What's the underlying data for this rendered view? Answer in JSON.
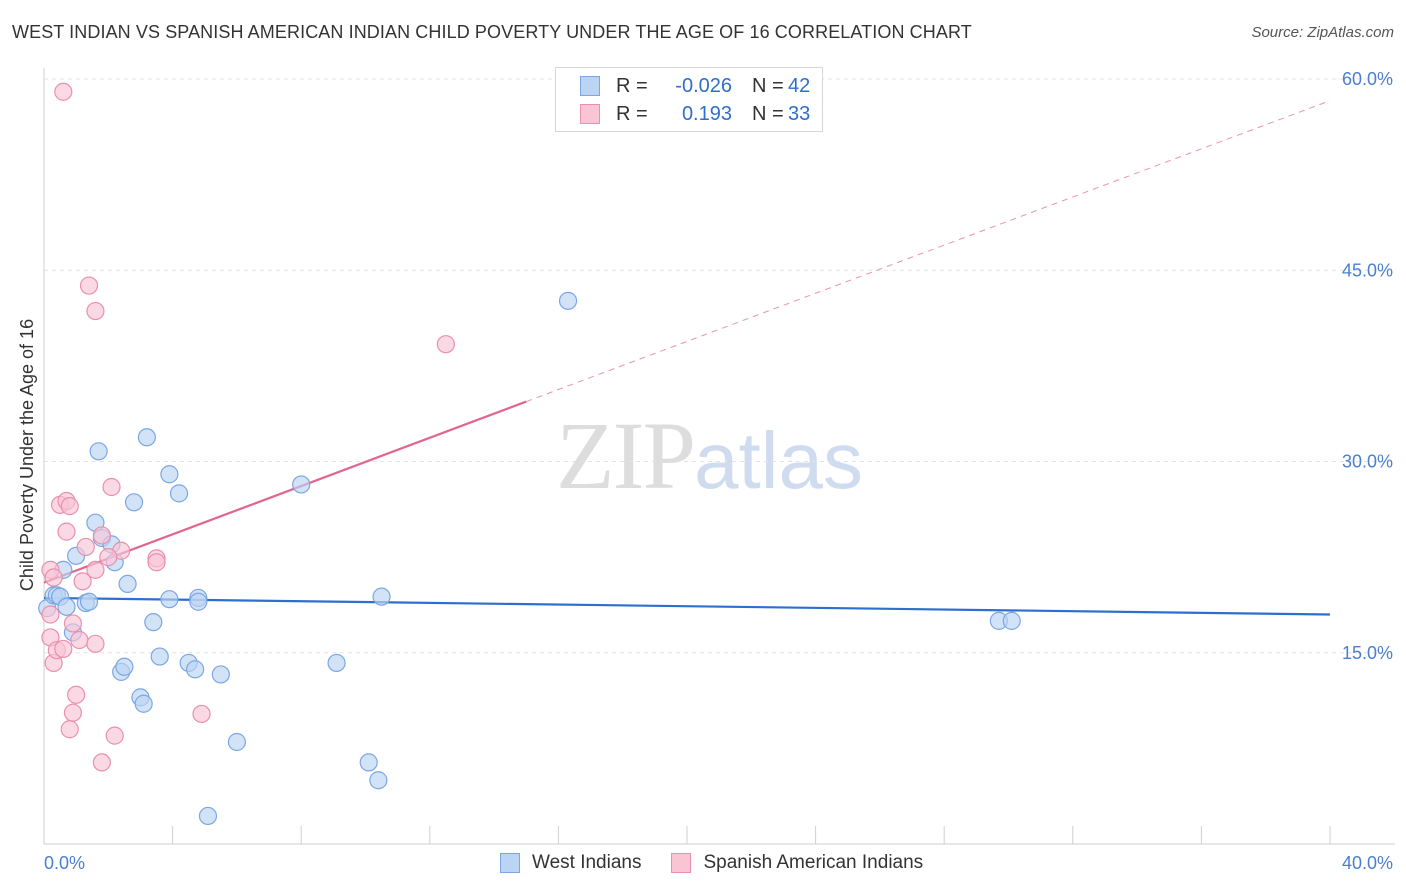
{
  "header": {
    "title": "WEST INDIAN VS SPANISH AMERICAN INDIAN CHILD POVERTY UNDER THE AGE OF 16 CORRELATION CHART",
    "source": "Source: ZipAtlas.com"
  },
  "watermark": {
    "zip": "ZIP",
    "atlas": "atlas"
  },
  "legend": {
    "rows": [
      {
        "r_label": "R =",
        "r_value": "-0.026",
        "n_label": "N =",
        "n_value": "42"
      },
      {
        "r_label": "R =",
        "r_value": "0.193",
        "n_label": "N =",
        "n_value": "33"
      }
    ]
  },
  "colors": {
    "west_fill": "#bcd4f3",
    "west_stroke": "#7aa7e3",
    "west_line": "#2c6fcf",
    "spanish_fill": "#f9c5d5",
    "spanish_stroke": "#ea8fad",
    "spanish_line": "#e0658f"
  },
  "chart_data": {
    "type": "scatter",
    "title": "WEST INDIAN VS SPANISH AMERICAN INDIAN CHILD POVERTY UNDER THE AGE OF 16 CORRELATION CHART",
    "xlabel": "",
    "ylabel": "Child Poverty Under the Age of 16",
    "xlim": [
      0,
      40
    ],
    "ylim": [
      0,
      60
    ],
    "x_tick_labels": [
      "0.0%",
      "40.0%"
    ],
    "y_ticks": [
      15,
      30,
      45,
      60
    ],
    "y_tick_labels": [
      "15.0%",
      "30.0%",
      "45.0%",
      "60.0%"
    ],
    "grid": true,
    "series": [
      {
        "name": "West Indians",
        "r": -0.026,
        "n": 42,
        "trend": {
          "x": [
            0,
            40
          ],
          "y": [
            19.3,
            18.0
          ]
        },
        "points": [
          [
            0.1,
            18.5
          ],
          [
            0.3,
            19.5
          ],
          [
            0.4,
            19.5
          ],
          [
            0.5,
            19.4
          ],
          [
            0.7,
            18.6
          ],
          [
            0.6,
            21.5
          ],
          [
            0.9,
            16.6
          ],
          [
            1.0,
            22.6
          ],
          [
            1.3,
            18.9
          ],
          [
            1.4,
            19.0
          ],
          [
            1.6,
            25.2
          ],
          [
            1.7,
            30.8
          ],
          [
            1.8,
            24.0
          ],
          [
            2.1,
            23.5
          ],
          [
            2.2,
            22.1
          ],
          [
            2.4,
            13.5
          ],
          [
            2.5,
            13.9
          ],
          [
            2.6,
            20.4
          ],
          [
            2.8,
            26.8
          ],
          [
            3.0,
            11.5
          ],
          [
            3.1,
            11.0
          ],
          [
            3.2,
            31.9
          ],
          [
            3.4,
            17.4
          ],
          [
            3.6,
            14.7
          ],
          [
            3.9,
            29.0
          ],
          [
            3.9,
            19.2
          ],
          [
            4.2,
            27.5
          ],
          [
            4.5,
            14.2
          ],
          [
            4.7,
            13.7
          ],
          [
            4.8,
            19.3
          ],
          [
            4.8,
            19.0
          ],
          [
            5.1,
            2.2
          ],
          [
            5.5,
            13.3
          ],
          [
            6.0,
            8.0
          ],
          [
            8.0,
            28.2
          ],
          [
            9.1,
            14.2
          ],
          [
            10.1,
            6.4
          ],
          [
            10.4,
            5.0
          ],
          [
            10.5,
            19.4
          ],
          [
            16.3,
            42.6
          ],
          [
            29.7,
            17.5
          ],
          [
            30.1,
            17.5
          ]
        ]
      },
      {
        "name": "Spanish American Indians",
        "r": 0.193,
        "n": 33,
        "trend": {
          "x": [
            0,
            15
          ],
          "y": [
            20.5,
            34.7
          ],
          "dashed_extension": {
            "x": [
              15,
              40
            ],
            "y": [
              34.7,
              58.3
            ]
          }
        },
        "points": [
          [
            0.2,
            18.0
          ],
          [
            0.2,
            21.5
          ],
          [
            0.2,
            16.2
          ],
          [
            0.3,
            14.2
          ],
          [
            0.3,
            20.9
          ],
          [
            0.4,
            15.2
          ],
          [
            0.5,
            26.6
          ],
          [
            0.6,
            15.3
          ],
          [
            0.6,
            59.0
          ],
          [
            0.7,
            24.5
          ],
          [
            0.7,
            26.9
          ],
          [
            0.8,
            26.5
          ],
          [
            0.8,
            9.0
          ],
          [
            0.9,
            17.3
          ],
          [
            0.9,
            10.3
          ],
          [
            1.0,
            11.7
          ],
          [
            1.1,
            16.0
          ],
          [
            1.2,
            20.6
          ],
          [
            1.3,
            23.3
          ],
          [
            1.4,
            43.8
          ],
          [
            1.6,
            41.8
          ],
          [
            1.6,
            21.5
          ],
          [
            1.6,
            15.7
          ],
          [
            1.8,
            24.2
          ],
          [
            2.1,
            28.0
          ],
          [
            2.2,
            8.5
          ],
          [
            1.8,
            6.4
          ],
          [
            2.4,
            23.0
          ],
          [
            3.5,
            22.4
          ],
          [
            3.5,
            22.1
          ],
          [
            4.9,
            10.2
          ],
          [
            12.5,
            39.2
          ],
          [
            2.0,
            22.5
          ]
        ]
      }
    ]
  }
}
